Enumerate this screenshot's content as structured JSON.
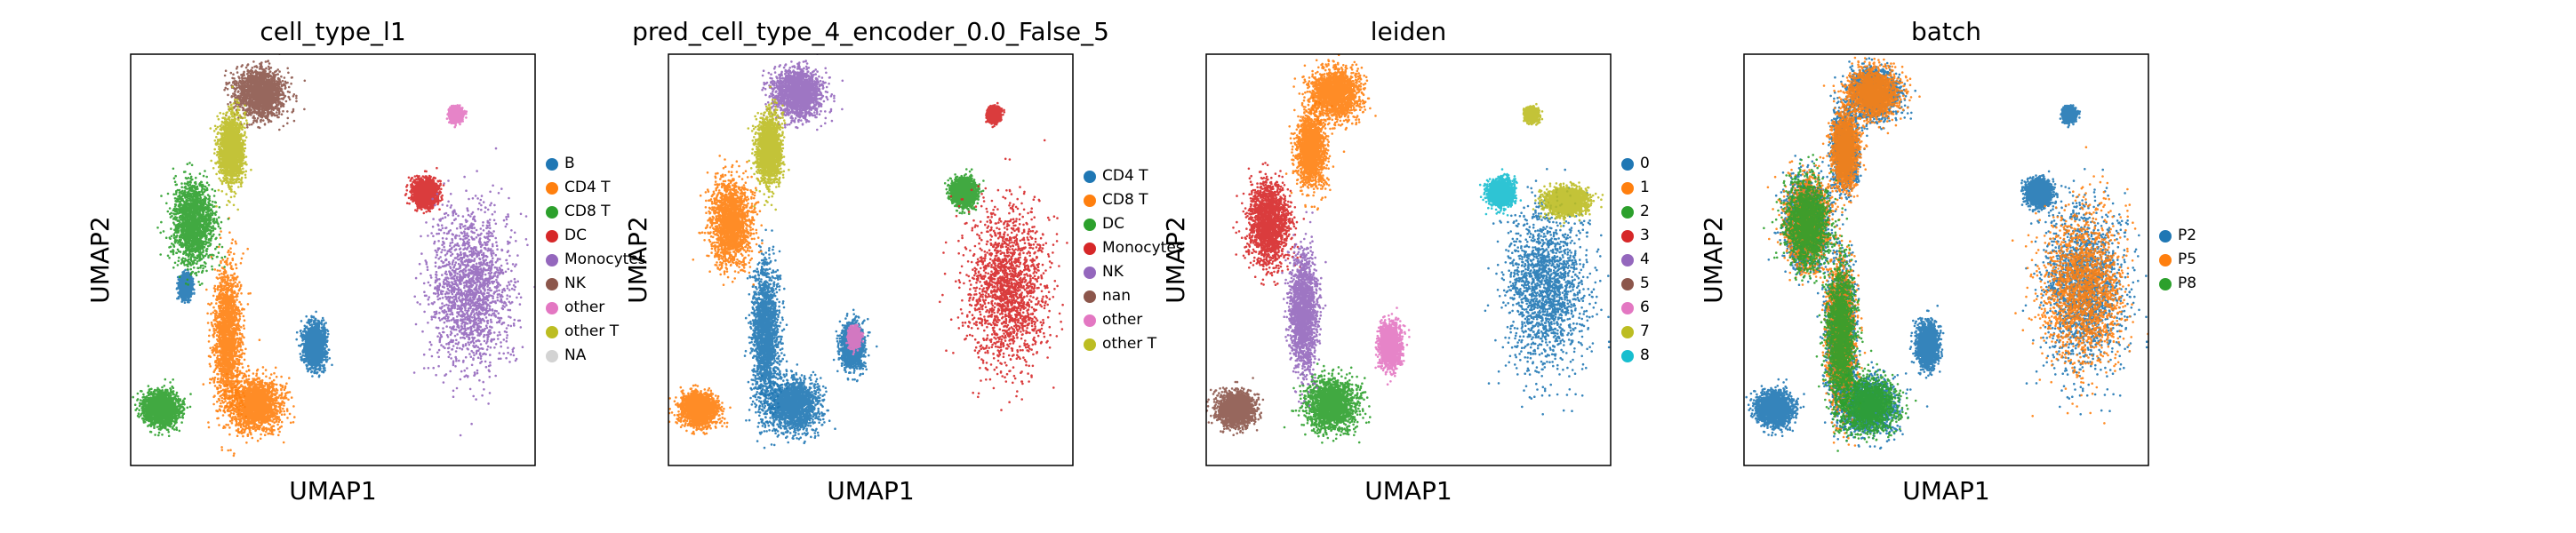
{
  "chart_data": [
    {
      "type": "scatter",
      "title": "cell_type_l1",
      "xlabel": "UMAP1",
      "ylabel": "UMAP2",
      "grid": false,
      "legend_position": "right",
      "series": [
        {
          "name": "B",
          "color": "#1f77b4",
          "clusters": [
            [
              1.35,
              -0.35,
              0.14,
              0.24
            ],
            [
              4.55,
              -1.72,
              0.26,
              0.48
            ]
          ]
        },
        {
          "name": "CD4 T",
          "color": "#ff7f0e",
          "clusters": [
            [
              2.4,
              -1.5,
              0.34,
              1.6
            ],
            [
              3.1,
              -3.1,
              0.62,
              0.58
            ]
          ]
        },
        {
          "name": "CD8 T",
          "color": "#2ca02c",
          "clusters": [
            [
              1.55,
              1.1,
              0.5,
              0.95
            ],
            [
              0.75,
              -3.2,
              0.45,
              0.38
            ]
          ]
        },
        {
          "name": "DC",
          "color": "#d62728",
          "clusters": [
            [
              7.3,
              1.8,
              0.3,
              0.3
            ]
          ]
        },
        {
          "name": "Monocytes",
          "color": "#9467bd",
          "clusters": [
            [
              8.4,
              -0.4,
              1.0,
              1.8
            ]
          ]
        },
        {
          "name": "NK",
          "color": "#8c564b",
          "clusters": [
            [
              3.2,
              4.1,
              0.6,
              0.55
            ]
          ]
        },
        {
          "name": "other",
          "color": "#e377c2",
          "clusters": [
            [
              8.05,
              3.6,
              0.14,
              0.15
            ]
          ]
        },
        {
          "name": "other T",
          "color": "#bcbd22",
          "clusters": [
            [
              2.5,
              2.8,
              0.3,
              0.8
            ]
          ]
        },
        {
          "name": "NA",
          "color": "#d3d3d3",
          "clusters": []
        }
      ]
    },
    {
      "type": "scatter",
      "title": "pred_cell_type_4_encoder_0.0_False_5",
      "xlabel": "UMAP1",
      "ylabel": "UMAP2",
      "grid": false,
      "legend_position": "right",
      "series": [
        {
          "name": "CD4 T",
          "color": "#1f77b4",
          "clusters": [
            [
              2.4,
              -1.5,
              0.34,
              1.6
            ],
            [
              3.1,
              -3.1,
              0.62,
              0.58
            ],
            [
              4.55,
              -1.72,
              0.26,
              0.48
            ]
          ]
        },
        {
          "name": "CD8 T",
          "color": "#ff7f0e",
          "clusters": [
            [
              1.55,
              1.1,
              0.5,
              0.95
            ],
            [
              0.75,
              -3.2,
              0.45,
              0.38
            ]
          ]
        },
        {
          "name": "DC",
          "color": "#2ca02c",
          "clusters": [
            [
              7.3,
              1.8,
              0.3,
              0.3
            ]
          ]
        },
        {
          "name": "Monocytes",
          "color": "#d62728",
          "clusters": [
            [
              8.4,
              -0.4,
              1.0,
              1.8
            ],
            [
              8.05,
              3.6,
              0.14,
              0.15
            ]
          ]
        },
        {
          "name": "NK",
          "color": "#9467bd",
          "clusters": [
            [
              3.2,
              4.1,
              0.6,
              0.55
            ]
          ]
        },
        {
          "name": "nan",
          "color": "#8c564b",
          "clusters": []
        },
        {
          "name": "other",
          "color": "#e377c2",
          "clusters": [
            [
              4.6,
              -1.55,
              0.12,
              0.2
            ]
          ]
        },
        {
          "name": "other T",
          "color": "#bcbd22",
          "clusters": [
            [
              2.5,
              2.8,
              0.3,
              0.8
            ]
          ]
        }
      ]
    },
    {
      "type": "scatter",
      "title": "leiden",
      "xlabel": "UMAP1",
      "ylabel": "UMAP2",
      "grid": false,
      "legend_position": "right",
      "series": [
        {
          "name": "0",
          "color": "#1f77b4",
          "clusters": [
            [
              8.4,
              -0.4,
              1.0,
              1.8
            ]
          ]
        },
        {
          "name": "1",
          "color": "#ff7f0e",
          "clusters": [
            [
              3.2,
              4.1,
              0.6,
              0.55
            ],
            [
              2.6,
              2.8,
              0.35,
              0.8
            ]
          ]
        },
        {
          "name": "2",
          "color": "#2ca02c",
          "clusters": [
            [
              3.1,
              -3.1,
              0.62,
              0.58
            ]
          ]
        },
        {
          "name": "3",
          "color": "#d62728",
          "clusters": [
            [
              1.55,
              1.1,
              0.5,
              0.95
            ]
          ]
        },
        {
          "name": "4",
          "color": "#9467bd",
          "clusters": [
            [
              2.4,
              -1.0,
              0.34,
              1.3
            ]
          ]
        },
        {
          "name": "5",
          "color": "#8c564b",
          "clusters": [
            [
              0.75,
              -3.2,
              0.45,
              0.38
            ]
          ]
        },
        {
          "name": "6",
          "color": "#e377c2",
          "clusters": [
            [
              4.55,
              -1.72,
              0.26,
              0.48
            ]
          ]
        },
        {
          "name": "7",
          "color": "#bcbd22",
          "clusters": [
            [
              8.05,
              3.6,
              0.14,
              0.15
            ],
            [
              8.9,
              1.6,
              0.5,
              0.3
            ]
          ]
        },
        {
          "name": "8",
          "color": "#17becf",
          "clusters": [
            [
              7.3,
              1.8,
              0.3,
              0.3
            ]
          ]
        }
      ]
    },
    {
      "type": "scatter",
      "title": "batch",
      "xlabel": "UMAP1",
      "ylabel": "UMAP2",
      "grid": false,
      "legend_position": "right",
      "series": [
        {
          "name": "P2",
          "color": "#1f77b4",
          "clusters": [
            [
              8.4,
              -0.4,
              1.0,
              1.8
            ],
            [
              2.4,
              -1.5,
              0.34,
              1.6
            ],
            [
              3.1,
              -3.1,
              0.62,
              0.58
            ],
            [
              1.55,
              1.1,
              0.5,
              0.95
            ],
            [
              3.2,
              4.1,
              0.6,
              0.55
            ],
            [
              0.75,
              -3.2,
              0.45,
              0.38
            ],
            [
              4.55,
              -1.72,
              0.26,
              0.48
            ],
            [
              2.5,
              2.8,
              0.3,
              0.8
            ],
            [
              7.3,
              1.8,
              0.3,
              0.3
            ],
            [
              8.05,
              3.6,
              0.14,
              0.15
            ]
          ]
        },
        {
          "name": "P5",
          "color": "#ff7f0e",
          "clusters": [
            [
              8.4,
              -0.4,
              1.0,
              1.8
            ],
            [
              1.55,
              1.1,
              0.5,
              0.95
            ],
            [
              3.2,
              4.1,
              0.6,
              0.55
            ],
            [
              2.5,
              2.8,
              0.3,
              0.8
            ],
            [
              2.4,
              -1.5,
              0.34,
              1.6
            ]
          ]
        },
        {
          "name": "P8",
          "color": "#2ca02c",
          "clusters": [
            [
              1.55,
              1.1,
              0.5,
              0.95
            ],
            [
              2.4,
              -1.5,
              0.34,
              1.6
            ],
            [
              3.1,
              -3.1,
              0.62,
              0.58
            ]
          ]
        }
      ]
    }
  ]
}
